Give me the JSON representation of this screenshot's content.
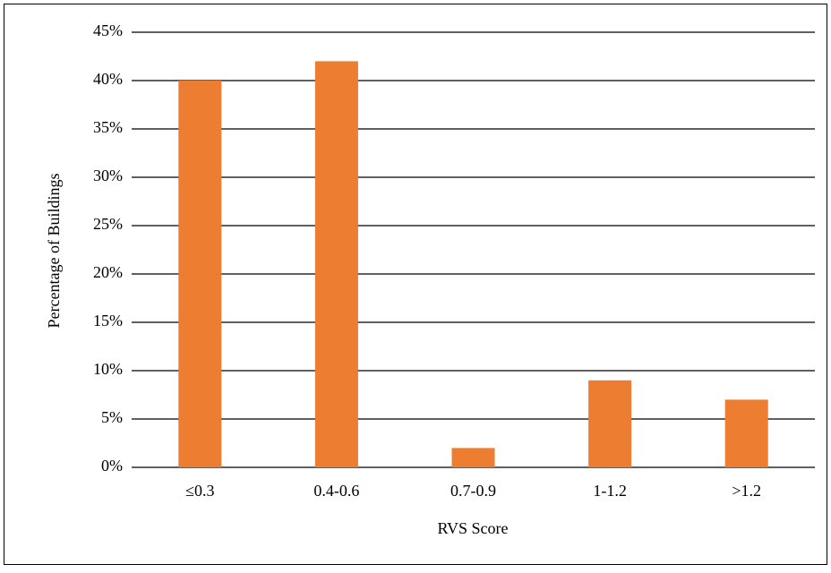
{
  "chart_data": {
    "type": "bar",
    "xlabel": "RVS Score",
    "ylabel": "Percentage of Buildings",
    "categories": [
      "≤0.3",
      "0.4-0.6",
      "0.7-0.9",
      "1-1.2",
      ">1.2"
    ],
    "values": [
      40,
      42,
      2,
      9,
      7
    ],
    "color": "#ed7d31",
    "ylim": [
      0,
      45
    ],
    "yticks": [
      {
        "value": 0,
        "label": "0%"
      },
      {
        "value": 5,
        "label": "5%"
      },
      {
        "value": 10,
        "label": "10%"
      },
      {
        "value": 15,
        "label": "15%"
      },
      {
        "value": 20,
        "label": "20%"
      },
      {
        "value": 25,
        "label": "25%"
      },
      {
        "value": 30,
        "label": "30%"
      },
      {
        "value": 35,
        "label": "35%"
      },
      {
        "value": 40,
        "label": "40%"
      },
      {
        "value": 45,
        "label": "45%"
      }
    ],
    "grid": true
  }
}
